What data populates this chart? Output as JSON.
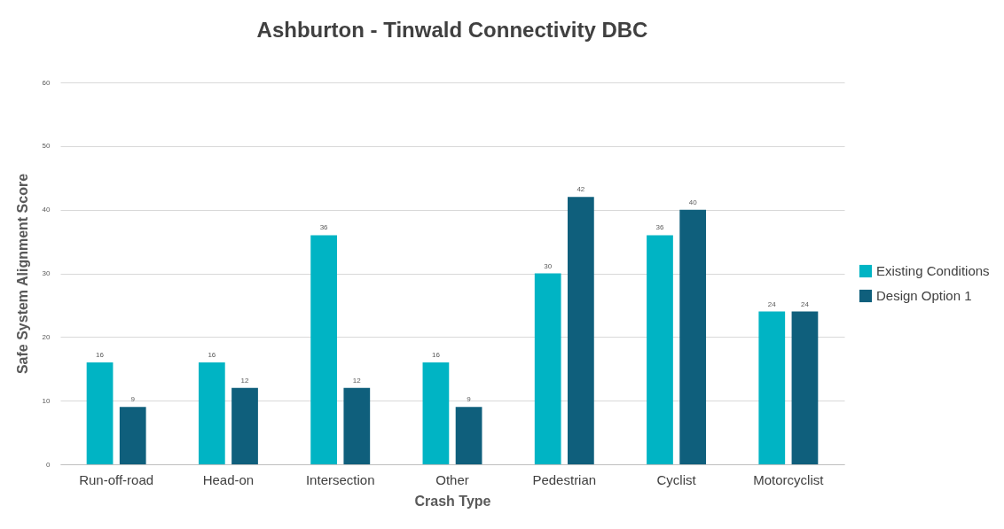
{
  "chart_data": {
    "type": "bar",
    "title": "Ashburton - Tinwald Connectivity DBC",
    "xlabel": "Crash Type",
    "ylabel": "Safe System Alignment Score",
    "categories": [
      "Run-off-road",
      "Head-on",
      "Intersection",
      "Other",
      "Pedestrian",
      "Cyclist",
      "Motorcyclist"
    ],
    "series": [
      {
        "name": "Existing Conditions",
        "color": "#00b4c4",
        "values": [
          16,
          16,
          36,
          16,
          30,
          36,
          24
        ]
      },
      {
        "name": "Design Option 1",
        "color": "#0f5f7c",
        "values": [
          9,
          12,
          12,
          9,
          42,
          40,
          24
        ]
      }
    ],
    "ylim": [
      0,
      60
    ],
    "yticks": [
      0,
      10,
      20,
      30,
      40,
      50,
      60
    ],
    "grid": "y",
    "legend": "right",
    "data_labels": true
  }
}
